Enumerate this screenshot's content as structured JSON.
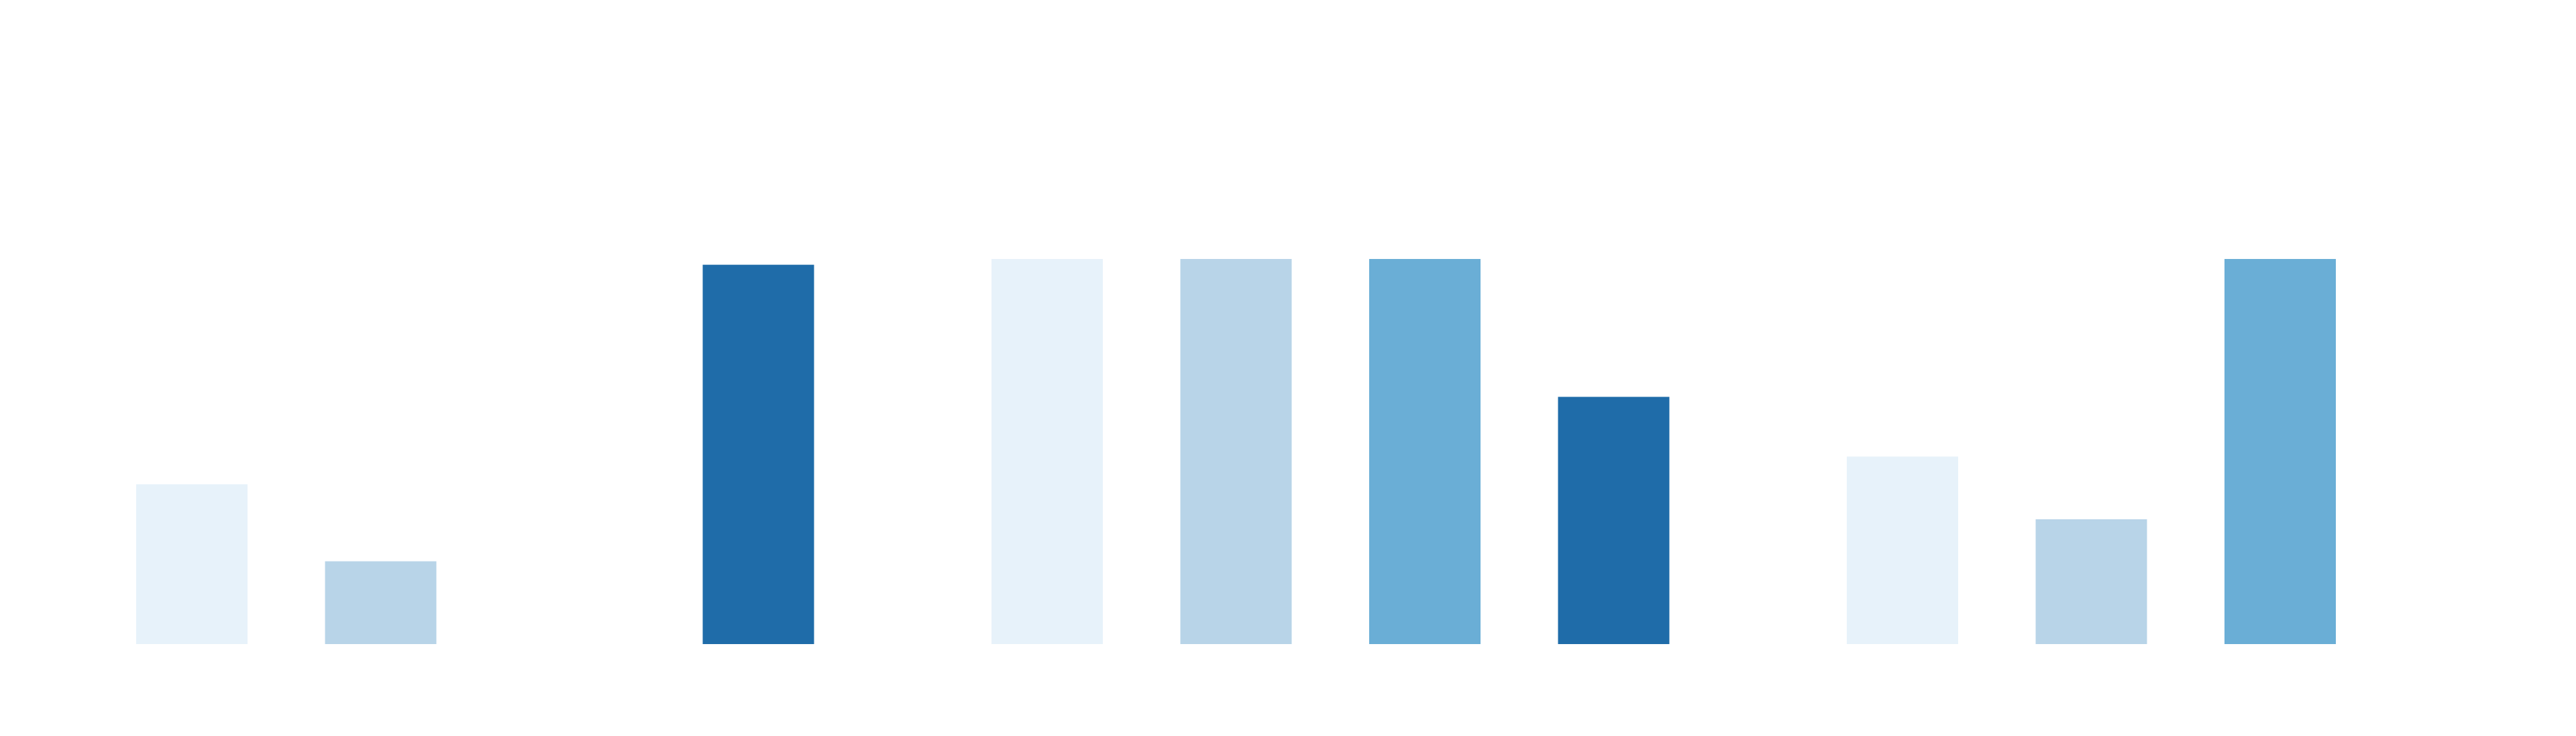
{
  "chart_data": {
    "type": "bar",
    "title": "",
    "xlabel": "",
    "ylabel": "",
    "ylim": [
      0,
      100
    ],
    "grid": false,
    "legend": "none",
    "colors": [
      "#e7f2fa",
      "#b8d4e8",
      "#6aaed6",
      "#1f6ca9"
    ],
    "groups": [
      {
        "bars": [
          {
            "value": 41.5,
            "color_index": 0
          },
          {
            "value": 21.5,
            "color_index": 1
          },
          {
            "value": null,
            "color_index": 2
          },
          {
            "value": 98.5,
            "color_index": 3
          }
        ]
      },
      {
        "bars": [
          {
            "value": 100,
            "color_index": 0
          },
          {
            "value": 100,
            "color_index": 1
          },
          {
            "value": 100,
            "color_index": 2
          },
          {
            "value": 64.2,
            "color_index": 3
          }
        ]
      },
      {
        "bars": [
          {
            "value": 48.7,
            "color_index": 0
          },
          {
            "value": 32.4,
            "color_index": 1
          },
          {
            "value": 100,
            "color_index": 2
          },
          {
            "value": null,
            "color_index": 3
          }
        ]
      }
    ]
  }
}
